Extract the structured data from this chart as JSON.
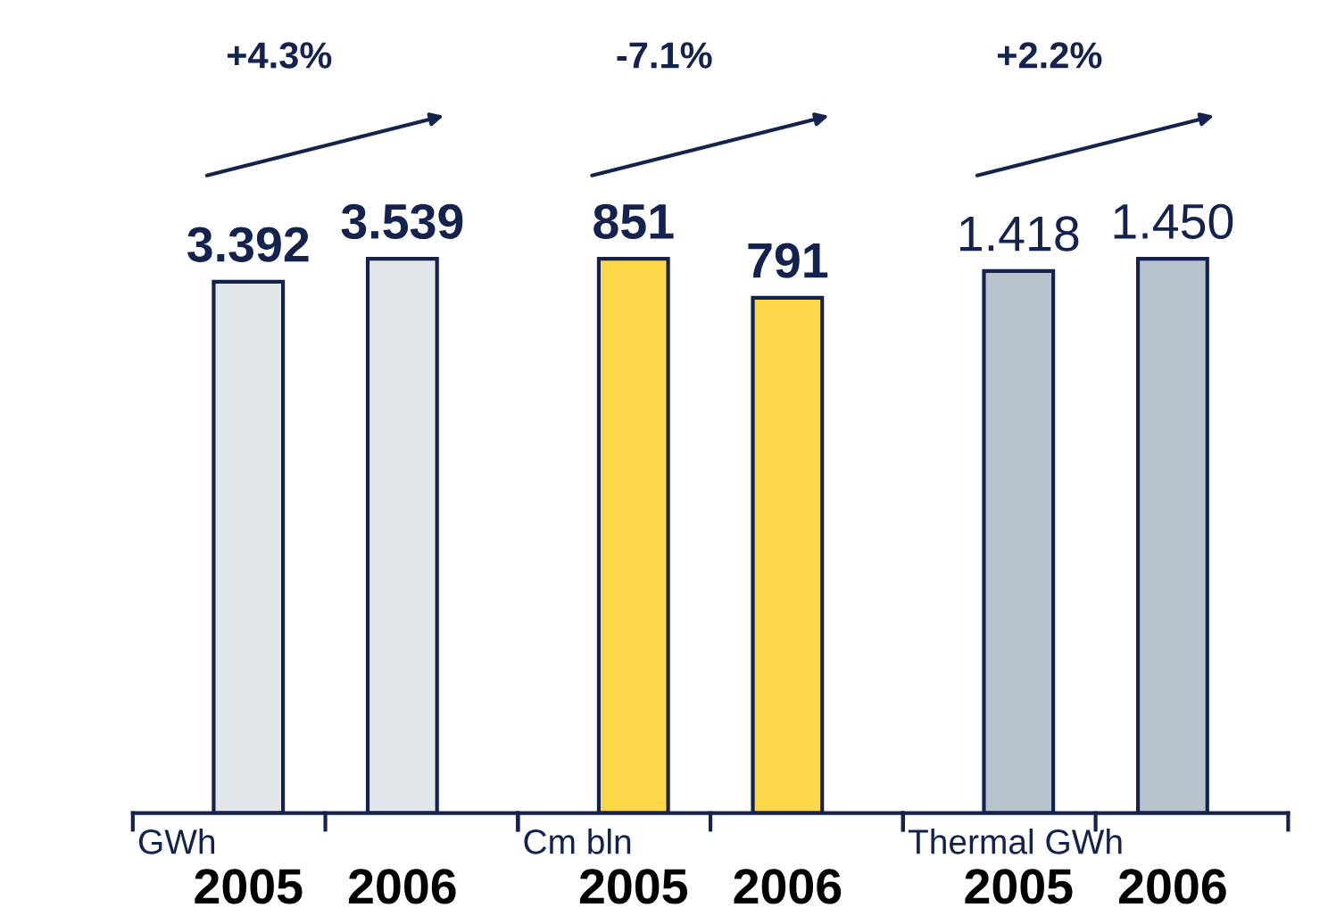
{
  "chart_data": [
    {
      "type": "bar",
      "categories": [
        "2005",
        "2006"
      ],
      "values": [
        3.392,
        3.539
      ],
      "value_labels": [
        "3.392",
        "3.539"
      ],
      "color": "#e3e6eb",
      "xlabel": "GWh",
      "annotations": [
        "+4.3%"
      ]
    },
    {
      "type": "bar",
      "categories": [
        "2005",
        "2006"
      ],
      "values": [
        851,
        791
      ],
      "value_labels": [
        "851",
        "791"
      ],
      "color": "#ffd84a",
      "xlabel": "Cm bln",
      "annotations": [
        "-7.1%"
      ]
    },
    {
      "type": "bar",
      "categories": [
        "2005",
        "2006"
      ],
      "values": [
        1.418,
        1.45
      ],
      "value_labels": [
        "1.418",
        "1.450"
      ],
      "color": "#b9c3cd",
      "xlabel": "Thermal GWh",
      "annotations": [
        "+2.2%"
      ]
    }
  ]
}
